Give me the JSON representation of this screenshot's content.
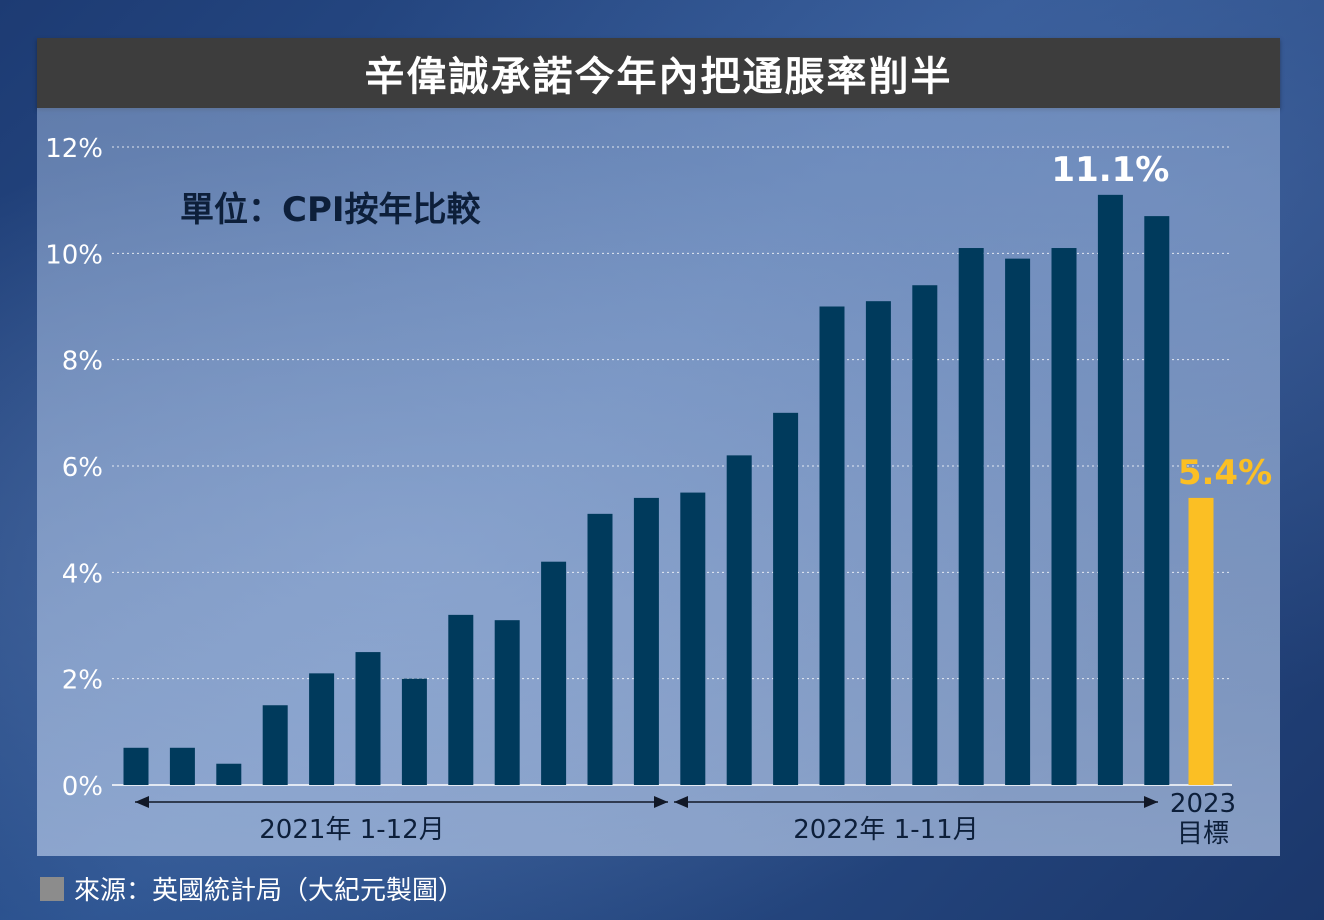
{
  "header": {
    "title": "辛偉誠承諾今年內把通脹率削半"
  },
  "unit_label": "單位：CPI按年比較",
  "source": "來源：英國統計局（大紀元製圖）",
  "colors": {
    "bar": "#003a5c",
    "target": "#fbbf24",
    "title_bg": "#3d3d3d"
  },
  "chart_data": {
    "type": "bar",
    "title": "辛偉誠承諾今年內把通脹率削半",
    "ylabel": "單位：CPI按年比較",
    "ylim": [
      0,
      12
    ],
    "y_ticks": [
      "0%",
      "2%",
      "4%",
      "6%",
      "8%",
      "10%",
      "12%"
    ],
    "grid": true,
    "series": [
      {
        "group": "2021年 1-12月",
        "categories": [
          "2021-01",
          "2021-02",
          "2021-03",
          "2021-04",
          "2021-05",
          "2021-06",
          "2021-07",
          "2021-08",
          "2021-09",
          "2021-10",
          "2021-11",
          "2021-12"
        ],
        "values": [
          0.7,
          0.7,
          0.4,
          1.5,
          2.1,
          2.5,
          2.0,
          3.2,
          3.1,
          4.2,
          5.1,
          5.4
        ]
      },
      {
        "group": "2022年 1-11月",
        "categories": [
          "2022-01",
          "2022-02",
          "2022-03",
          "2022-04",
          "2022-05",
          "2022-06",
          "2022-07",
          "2022-08",
          "2022-09",
          "2022-10",
          "2022-11"
        ],
        "values": [
          5.5,
          6.2,
          7.0,
          9.0,
          9.1,
          9.4,
          10.1,
          9.9,
          10.1,
          11.1,
          10.7
        ]
      },
      {
        "group": "2023 目標",
        "group_line1": "2023",
        "group_line2": "目標",
        "categories": [
          "2023"
        ],
        "values": [
          5.4
        ]
      }
    ],
    "annotations": [
      {
        "text": "11.1%",
        "series": 1,
        "index": 9
      },
      {
        "text": "5.4%",
        "series": 2,
        "index": 0
      }
    ],
    "x_groups": [
      "2021年 1-12月",
      "2022年 1-11月",
      "2023 目標"
    ]
  }
}
